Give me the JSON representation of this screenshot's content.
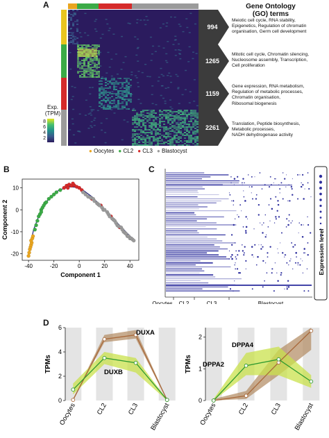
{
  "panels": {
    "a": "A",
    "b": "B",
    "c": "C",
    "d": "D"
  },
  "colors": {
    "oocytes": "#E9A51F",
    "cl2": "#3BAA46",
    "cl3": "#D52A2A",
    "blastocyst": "#9B9B9B",
    "heat_low": "#2B1B5E",
    "heat_high": "#E5E51E",
    "dot": "#2D2E9E",
    "band_brown": "#B5906A",
    "band_green": "#C9E24C",
    "line_brown": "#A8683A",
    "line_green": "#2F9A2F"
  },
  "heatmap": {
    "go_title_line1": "Gene Ontology",
    "go_title_line2": "(GO) terms",
    "legend_title_line1": "Exp.",
    "legend_title_line2": "(TPM)",
    "legend_ticks": [
      "8",
      "6",
      "4",
      "2"
    ],
    "clusters": [
      {
        "count": "994",
        "terms": [
          "Meiotic cell cycle, RNA stability,",
          "Epigenetics, Regulation of chromatin",
          "organisation, Germ cell development"
        ]
      },
      {
        "count": "1265",
        "terms": [
          "Mitotic cell cycle, Chromatin silencing,",
          "Nucleosome assembly, Transcription,",
          "Cell proliferation"
        ]
      },
      {
        "count": "1159",
        "terms": [
          "Gene expression, RNA metabolism,",
          "Regulation of metabolic processes,",
          "Chromatin organisation,",
          "Ribosomal biogenesis"
        ]
      },
      {
        "count": "2261",
        "terms": [
          "Translation, Peptide biosynthesis,",
          "Metabolic processes,",
          "NADH dehydrogenase activity"
        ]
      }
    ],
    "group_legend": [
      "Oocytes",
      "CL2",
      "CL3",
      "Blastocyst"
    ]
  },
  "chart_data": [
    {
      "type": "scatter",
      "xlabel": "Component 1",
      "ylabel": "Component 2",
      "xlim": [
        -45,
        47
      ],
      "ylim": [
        -23,
        14
      ],
      "xticks": [
        "-40",
        "-20",
        "0",
        "20",
        "40"
      ],
      "yticks": [
        "10",
        "0",
        "-10",
        "-20"
      ],
      "trajectory": [
        [
          -39,
          -17
        ],
        [
          -36,
          -9
        ],
        [
          -30,
          0
        ],
        [
          -24,
          5
        ],
        [
          -16,
          9
        ],
        [
          -8,
          10.5
        ],
        [
          0,
          10.2
        ],
        [
          10,
          6
        ],
        [
          20,
          0
        ],
        [
          30,
          -6
        ],
        [
          40,
          -12
        ],
        [
          43,
          -14
        ]
      ],
      "series": [
        {
          "name": "Oocytes",
          "points": [
            [
              -40,
              -21
            ],
            [
              -39.5,
              -19.5
            ],
            [
              -39,
              -18
            ],
            [
              -38.5,
              -17
            ],
            [
              -38,
              -16
            ],
            [
              -37.5,
              -15
            ],
            [
              -38,
              -14
            ],
            [
              -37,
              -13
            ],
            [
              -36.5,
              -12
            ]
          ]
        },
        {
          "name": "CL2",
          "points": [
            [
              -35,
              -9
            ],
            [
              -34,
              -7
            ],
            [
              -33,
              -5
            ],
            [
              -32,
              -3
            ],
            [
              -31,
              -2
            ],
            [
              -30,
              0
            ],
            [
              -29,
              1
            ],
            [
              -27,
              3
            ],
            [
              -26,
              3.5
            ],
            [
              -24,
              5
            ],
            [
              -22,
              6
            ],
            [
              -20,
              7
            ],
            [
              -18,
              8
            ],
            [
              -15,
              9
            ],
            [
              -30,
              -1
            ],
            [
              -28,
              2
            ]
          ]
        },
        {
          "name": "CL3",
          "points": [
            [
              -12,
              10
            ],
            [
              -10,
              11
            ],
            [
              -8,
              11.5
            ],
            [
              -6,
              11
            ],
            [
              -4,
              11.2
            ],
            [
              -2,
              10.5
            ],
            [
              0,
              10
            ],
            [
              2,
              9
            ],
            [
              -5,
              12
            ],
            [
              -9,
              10
            ],
            [
              10,
              5
            ],
            [
              17,
              2
            ],
            [
              25,
              -3
            ],
            [
              32,
              -8
            ]
          ]
        },
        {
          "name": "Blastocyst",
          "points": [
            [
              3,
              8
            ],
            [
              5,
              7
            ],
            [
              7,
              6
            ],
            [
              9,
              5.5
            ],
            [
              11,
              5
            ],
            [
              12,
              4
            ],
            [
              14,
              3
            ],
            [
              15,
              2.5
            ],
            [
              16,
              2
            ],
            [
              18,
              1
            ],
            [
              19,
              0
            ],
            [
              20,
              0
            ],
            [
              22,
              -1
            ],
            [
              23,
              -2
            ],
            [
              24,
              -3
            ],
            [
              26,
              -4
            ],
            [
              27,
              -4.5
            ],
            [
              28,
              -5
            ],
            [
              29,
              -6
            ],
            [
              30,
              -7
            ],
            [
              31,
              -7.5
            ],
            [
              33,
              -8
            ],
            [
              34,
              -9
            ],
            [
              35,
              -10
            ],
            [
              36,
              -10.5
            ],
            [
              37,
              -11
            ],
            [
              38,
              -12
            ],
            [
              39,
              -12
            ],
            [
              40,
              -13
            ],
            [
              41,
              -13
            ],
            [
              42,
              -13.5
            ],
            [
              43,
              -14
            ]
          ]
        }
      ]
    },
    {
      "type": "scatter",
      "ylabel": "Expression level",
      "xlabel": "",
      "x_groups": [
        "Oocytes",
        "CL2",
        "CL3",
        "Blastocyst"
      ]
    },
    {
      "type": "line",
      "ylabel": "TPMs",
      "categories": [
        "Oocytes",
        "CL2",
        "CL3",
        "Blastocyst"
      ],
      "ylim": [
        0,
        6
      ],
      "yticks": [
        "0",
        "2",
        "4",
        "6"
      ],
      "series": [
        {
          "name": "DUXA",
          "values": [
            0.05,
            5.05,
            5.4,
            0.05
          ],
          "band": [
            [
              0.0,
              0.15
            ],
            [
              4.8,
              5.4
            ],
            [
              5.1,
              5.8
            ],
            [
              0.0,
              0.1
            ]
          ]
        },
        {
          "name": "DUXB",
          "values": [
            0.9,
            3.5,
            3.1,
            0.05
          ],
          "band": [
            [
              0.5,
              1.4
            ],
            [
              3.0,
              4.0
            ],
            [
              2.3,
              3.5
            ],
            [
              0.0,
              0.1
            ]
          ]
        }
      ]
    },
    {
      "type": "line",
      "ylabel": "TPMs",
      "categories": [
        "Oocytes",
        "CL2",
        "CL3",
        "Blastocyst"
      ],
      "ylim": [
        0,
        2.3
      ],
      "yticks": [
        "0",
        "1",
        "2"
      ],
      "series": [
        {
          "name": "DPPA4",
          "values": [
            0.0,
            0.15,
            1.2,
            2.2
          ],
          "band": [
            [
              0.0,
              0.05
            ],
            [
              0.05,
              0.3
            ],
            [
              0.8,
              1.6
            ],
            [
              1.6,
              2.3
            ]
          ]
        },
        {
          "name": "DPPA2",
          "values": [
            0.0,
            1.1,
            1.3,
            0.6
          ],
          "band": [
            [
              0.0,
              0.05
            ],
            [
              0.8,
              1.5
            ],
            [
              0.8,
              1.7
            ],
            [
              0.4,
              0.8
            ]
          ]
        }
      ]
    }
  ]
}
